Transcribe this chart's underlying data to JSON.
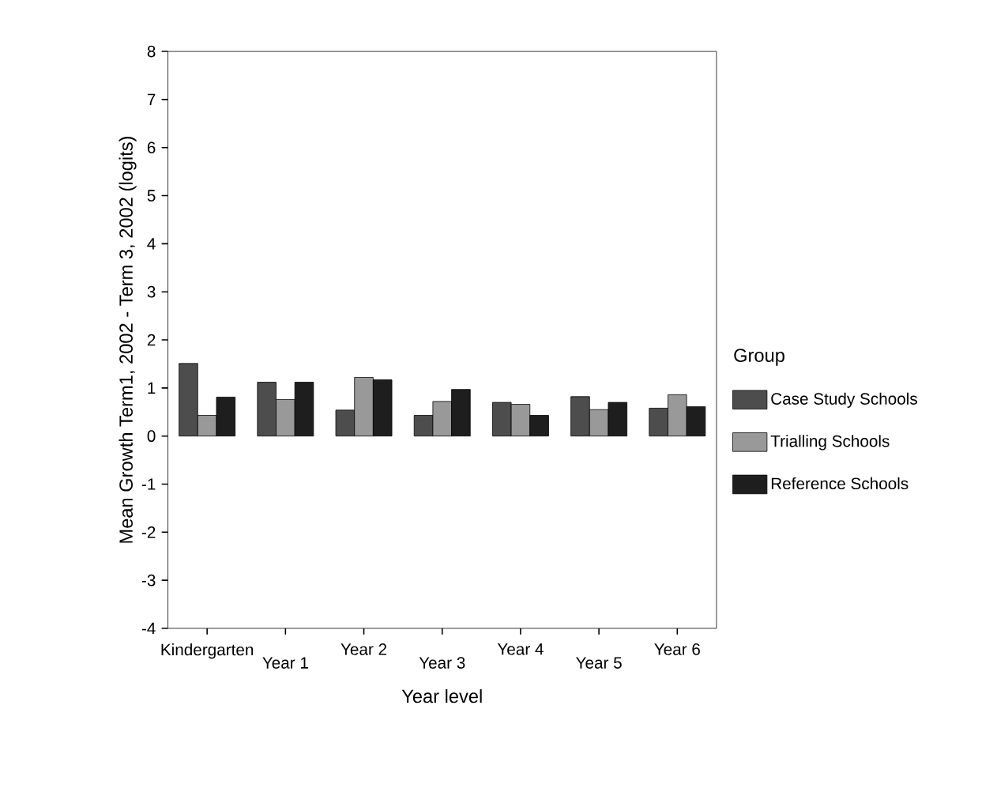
{
  "chart_data": {
    "type": "bar",
    "xlabel": "Year level",
    "ylabel": "Mean Growth Term1, 2002 - Term 3, 2002 (logits)",
    "legend_title": "Group",
    "categories": [
      "Kindergarten",
      "Year 1",
      "Year 2",
      "Year 3",
      "Year 4",
      "Year 5",
      "Year 6"
    ],
    "series": [
      {
        "name": "Case Study Schools",
        "color": "#4d4d4d",
        "values": [
          1.51,
          1.12,
          0.54,
          0.43,
          0.7,
          0.82,
          0.58
        ]
      },
      {
        "name": "Trialling Schools",
        "color": "#999999",
        "values": [
          0.43,
          0.76,
          1.22,
          0.72,
          0.66,
          0.55,
          0.86
        ]
      },
      {
        "name": "Reference Schools",
        "color": "#1e1e1e",
        "values": [
          0.81,
          1.12,
          1.17,
          0.97,
          0.43,
          0.7,
          0.61
        ]
      }
    ],
    "ylim": [
      -4,
      8
    ],
    "yticks": [
      -4,
      -3,
      -2,
      -1,
      0,
      1,
      2,
      3,
      4,
      5,
      6,
      7,
      8
    ],
    "grid": false,
    "legend": "right"
  }
}
